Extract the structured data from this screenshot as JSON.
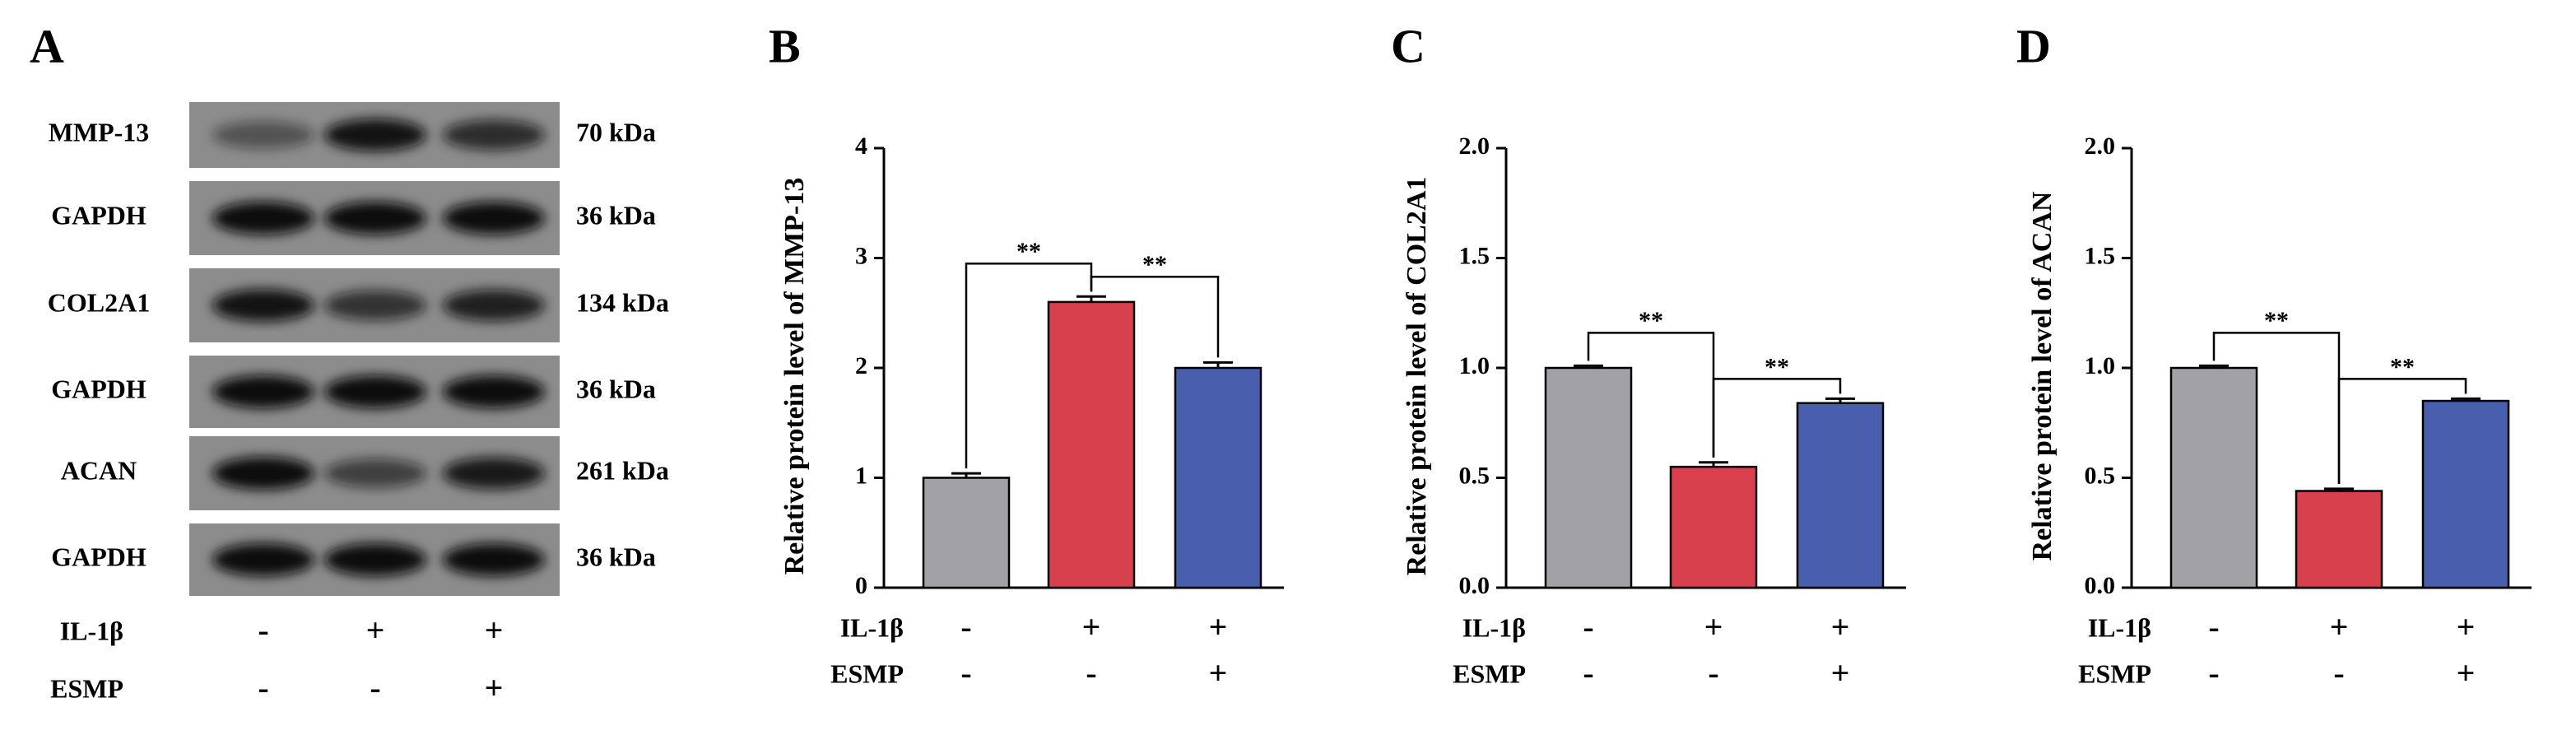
{
  "blot": {
    "label": "A",
    "rows": [
      {
        "name": "MMP-13",
        "size": "70 kDa"
      },
      {
        "name": "GAPDH",
        "size": "36 kDa"
      },
      {
        "name": "COL2A1",
        "size": "134 kDa"
      },
      {
        "name": "GAPDH",
        "size": "36 kDa"
      },
      {
        "name": "ACAN",
        "size": "261 kDa"
      },
      {
        "name": "GAPDH",
        "size": "36 kDa"
      }
    ],
    "conditions": [
      {
        "name": "IL-1β",
        "values": [
          "-",
          "+",
          "+"
        ]
      },
      {
        "name": "ESMP",
        "values": [
          "-",
          "-",
          "+"
        ]
      }
    ]
  },
  "chart_data": [
    {
      "type": "bar",
      "label": "B",
      "ylabel": "Relative protein level of MMP-13",
      "values": [
        1.0,
        2.6,
        2.0
      ],
      "errors": [
        0.04,
        0.05,
        0.05
      ],
      "colors": [
        "#a2a2a6",
        "#d8404e",
        "#4a5eae"
      ],
      "ylim": [
        0,
        4
      ],
      "yticks": [
        0,
        1,
        2,
        3,
        4
      ],
      "conditions": [
        {
          "name": "IL-1β",
          "values": [
            "-",
            "+",
            "+"
          ]
        },
        {
          "name": "ESMP",
          "values": [
            "-",
            "-",
            "+"
          ]
        }
      ],
      "annotations": [
        {
          "text": "**",
          "pair": [
            0,
            1
          ]
        },
        {
          "text": "**",
          "pair": [
            1,
            2
          ]
        }
      ]
    },
    {
      "type": "bar",
      "label": "C",
      "ylabel": "Relative protein level of COL2A1",
      "values": [
        1.0,
        0.55,
        0.84
      ],
      "errors": [
        0.01,
        0.02,
        0.02
      ],
      "colors": [
        "#a2a2a6",
        "#d8404e",
        "#4a5eae"
      ],
      "ylim": [
        0,
        2
      ],
      "yticks": [
        {
          "value": 0,
          "label": "0.0"
        },
        {
          "value": 0.5,
          "label": "0.5"
        },
        {
          "value": 1,
          "label": "1.0"
        },
        {
          "value": 1.5,
          "label": "1.5"
        },
        {
          "value": 2,
          "label": "2.0"
        }
      ],
      "conditions": [
        {
          "name": "IL-1β",
          "values": [
            "-",
            "+",
            "+"
          ]
        },
        {
          "name": "ESMP",
          "values": [
            "-",
            "-",
            "+"
          ]
        }
      ],
      "annotations": [
        {
          "text": "**",
          "pair": [
            0,
            1
          ]
        },
        {
          "text": "**",
          "pair": [
            1,
            2
          ]
        }
      ]
    },
    {
      "type": "bar",
      "label": "D",
      "ylabel": "Relative protein level of ACAN",
      "values": [
        1.0,
        0.44,
        0.85
      ],
      "errors": [
        0.01,
        0.01,
        0.01
      ],
      "colors": [
        "#a2a2a6",
        "#d8404e",
        "#4a5eae"
      ],
      "ylim": [
        0,
        2
      ],
      "yticks": [
        {
          "value": 0,
          "label": "0.0"
        },
        {
          "value": 0.5,
          "label": "0.5"
        },
        {
          "value": 1,
          "label": "1.0"
        },
        {
          "value": 1.5,
          "label": "1.5"
        },
        {
          "value": 2,
          "label": "2.0"
        }
      ],
      "conditions": [
        {
          "name": "IL-1β",
          "values": [
            "-",
            "+",
            "+"
          ]
        },
        {
          "name": "ESMP",
          "values": [
            "-",
            "-",
            "+"
          ]
        }
      ],
      "annotations": [
        {
          "text": "**",
          "pair": [
            0,
            1
          ]
        },
        {
          "text": "**",
          "pair": [
            1,
            2
          ]
        }
      ]
    }
  ]
}
